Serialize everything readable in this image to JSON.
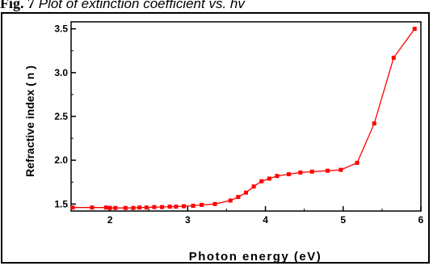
{
  "caption": {
    "prefix": "Fig. 7",
    "text": "Plot of extinction coefficient vs. hv"
  },
  "chart_data": {
    "type": "line",
    "title": "",
    "xlabel": "Photon energy (eV)",
    "ylabel": "Refractive index ( n )",
    "xlim": [
      1.5,
      6.0
    ],
    "ylim": [
      1.42,
      3.58
    ],
    "xticks": [
      2,
      3,
      4,
      5,
      6
    ],
    "yticks": [
      1.5,
      2.0,
      2.5,
      3.0,
      3.5
    ],
    "xtick_labels": [
      "2",
      "3",
      "4",
      "5",
      "6"
    ],
    "ytick_labels": [
      "1.5",
      "2.0",
      "2.5",
      "3.0",
      "3.5"
    ],
    "grid": false,
    "color": "#ff0000",
    "marker": "square",
    "series": [
      {
        "x": [
          1.52,
          1.77,
          1.95,
          2.0,
          2.07,
          2.2,
          2.3,
          2.38,
          2.47,
          2.57,
          2.67,
          2.77,
          2.85,
          2.95,
          3.07,
          3.18,
          3.35,
          3.55,
          3.65,
          3.75,
          3.85,
          3.95,
          4.05,
          4.15,
          4.3,
          4.45,
          4.6,
          4.8,
          4.97,
          5.18,
          5.4,
          5.65,
          5.92
        ],
        "y": [
          1.46,
          1.46,
          1.46,
          1.455,
          1.455,
          1.455,
          1.455,
          1.46,
          1.46,
          1.465,
          1.465,
          1.47,
          1.47,
          1.475,
          1.48,
          1.49,
          1.5,
          1.54,
          1.58,
          1.63,
          1.7,
          1.76,
          1.79,
          1.82,
          1.84,
          1.86,
          1.87,
          1.88,
          1.89,
          1.97,
          2.42,
          3.17,
          3.5
        ]
      }
    ]
  }
}
